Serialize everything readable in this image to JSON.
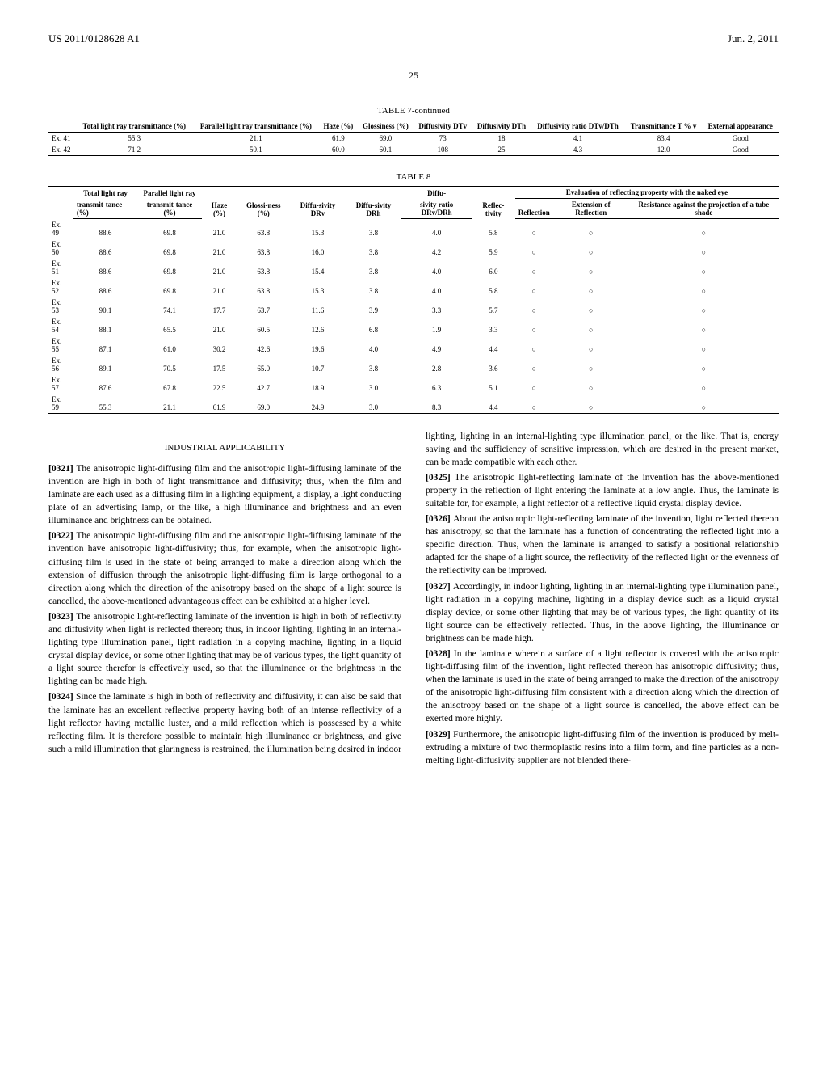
{
  "header": {
    "left": "US 2011/0128628 A1",
    "right": "Jun. 2, 2011"
  },
  "page_num": "25",
  "table7": {
    "title": "TABLE 7-continued",
    "headers": [
      "",
      "Total light ray transmittance (%)",
      "Parallel light ray transmittance (%)",
      "Haze (%)",
      "Glossiness (%)",
      "Diffusivity DTv",
      "Diffusivity DTh",
      "Diffusivity ratio DTv/DTh",
      "Transmittance T % v",
      "External appearance"
    ],
    "rows": [
      [
        "Ex. 41",
        "55.3",
        "21.1",
        "61.9",
        "69.0",
        "73",
        "18",
        "4.1",
        "83.4",
        "Good"
      ],
      [
        "Ex. 42",
        "71.2",
        "50.1",
        "60.0",
        "60.1",
        "108",
        "25",
        "4.3",
        "12.0",
        "Good"
      ]
    ]
  },
  "table8": {
    "title": "TABLE 8",
    "eval_header": "Evaluation of reflecting property with the naked eye",
    "headers1_row1": [
      "",
      "Total light ray",
      "Parallel light ray",
      "",
      "",
      "",
      "",
      "Diffu-",
      "",
      "",
      "",
      ""
    ],
    "headers1_row2": [
      "",
      "transmit-tance (%)",
      "transmit-tance (%)",
      "Haze (%)",
      "Glossi-ness (%)",
      "Diffu-sivity DRv",
      "Diffu-sivity DRh",
      "sivity ratio DRv/DRh",
      "Reflec-tivity",
      "Reflection",
      "Extension of Reflection",
      "Resistance against the projection of a tube shade"
    ],
    "rows": [
      [
        "Ex. 49",
        "88.6",
        "69.8",
        "21.0",
        "63.8",
        "15.3",
        "3.8",
        "4.0",
        "5.8",
        "○",
        "○",
        "○"
      ],
      [
        "Ex. 50",
        "88.6",
        "69.8",
        "21.0",
        "63.8",
        "16.0",
        "3.8",
        "4.2",
        "5.9",
        "○",
        "○",
        "○"
      ],
      [
        "Ex. 51",
        "88.6",
        "69.8",
        "21.0",
        "63.8",
        "15.4",
        "3.8",
        "4.0",
        "6.0",
        "○",
        "○",
        "○"
      ],
      [
        "Ex. 52",
        "88.6",
        "69.8",
        "21.0",
        "63.8",
        "15.3",
        "3.8",
        "4.0",
        "5.8",
        "○",
        "○",
        "○"
      ],
      [
        "Ex. 53",
        "90.1",
        "74.1",
        "17.7",
        "63.7",
        "11.6",
        "3.9",
        "3.3",
        "5.7",
        "○",
        "○",
        "○"
      ],
      [
        "Ex. 54",
        "88.1",
        "65.5",
        "21.0",
        "60.5",
        "12.6",
        "6.8",
        "1.9",
        "3.3",
        "○",
        "○",
        "○"
      ],
      [
        "Ex. 55",
        "87.1",
        "61.0",
        "30.2",
        "42.6",
        "19.6",
        "4.0",
        "4.9",
        "4.4",
        "○",
        "○",
        "○"
      ],
      [
        "Ex. 56",
        "89.1",
        "70.5",
        "17.5",
        "65.0",
        "10.7",
        "3.8",
        "2.8",
        "3.6",
        "○",
        "○",
        "○"
      ],
      [
        "Ex. 57",
        "87.6",
        "67.8",
        "22.5",
        "42.7",
        "18.9",
        "3.0",
        "6.3",
        "5.1",
        "○",
        "○",
        "○"
      ],
      [
        "Ex. 59",
        "55.3",
        "21.1",
        "61.9",
        "69.0",
        "24.9",
        "3.0",
        "8.3",
        "4.4",
        "○",
        "○",
        "○"
      ]
    ]
  },
  "section_title": "INDUSTRIAL APPLICABILITY",
  "paragraphs": [
    {
      "num": "[0321]",
      "text": "The anisotropic light-diffusing film and the anisotropic light-diffusing laminate of the invention are high in both of light transmittance and diffusivity; thus, when the film and laminate are each used as a diffusing film in a lighting equipment, a display, a light conducting plate of an advertising lamp, or the like, a high illuminance and brightness and an even illuminance and brightness can be obtained."
    },
    {
      "num": "[0322]",
      "text": "The anisotropic light-diffusing film and the anisotropic light-diffusing laminate of the invention have anisotropic light-diffusivity; thus, for example, when the anisotropic light-diffusing film is used in the state of being arranged to make a direction along which the extension of diffusion through the anisotropic light-diffusing film is large orthogonal to a direction along which the direction of the anisotropy based on the shape of a light source is cancelled, the above-mentioned advantageous effect can be exhibited at a higher level."
    },
    {
      "num": "[0323]",
      "text": "The anisotropic light-reflecting laminate of the invention is high in both of reflectivity and diffusivity when light is reflected thereon; thus, in indoor lighting, lighting in an internal-lighting type illumination panel, light radiation in a copying machine, lighting in a liquid crystal display device, or some other lighting that may be of various types, the light quantity of a light source therefor is effectively used, so that the illuminance or the brightness in the lighting can be made high."
    },
    {
      "num": "[0324]",
      "text": "Since the laminate is high in both of reflectivity and diffusivity, it can also be said that the laminate has an excellent reflective property having both of an intense reflectivity of a light reflector having metallic luster, and a mild reflection which is possessed by a white reflecting film. It is therefore possible to maintain high illuminance or brightness, and give such a mild illumination that glaringness is restrained, the illumination being desired in indoor lighting, lighting in an internal-lighting type illumination panel, or the like. That is, energy saving and the sufficiency of sensitive impression, which are desired in the present market, can be made compatible with each other."
    },
    {
      "num": "[0325]",
      "text": "The anisotropic light-reflecting laminate of the invention has the above-mentioned property in the reflection of light entering the laminate at a low angle. Thus, the laminate is suitable for, for example, a light reflector of a reflective liquid crystal display device."
    },
    {
      "num": "[0326]",
      "text": "About the anisotropic light-reflecting laminate of the invention, light reflected thereon has anisotropy, so that the laminate has a function of concentrating the reflected light into a specific direction. Thus, when the laminate is arranged to satisfy a positional relationship adapted for the shape of a light source, the reflectivity of the reflected light or the evenness of the reflectivity can be improved."
    },
    {
      "num": "[0327]",
      "text": "Accordingly, in indoor lighting, lighting in an internal-lighting type illumination panel, light radiation in a copying machine, lighting in a display device such as a liquid crystal display device, or some other lighting that may be of various types, the light quantity of its light source can be effectively reflected. Thus, in the above lighting, the illuminance or brightness can be made high."
    },
    {
      "num": "[0328]",
      "text": "In the laminate wherein a surface of a light reflector is covered with the anisotropic light-diffusing film of the invention, light reflected thereon has anisotropic diffusivity; thus, when the laminate is used in the state of being arranged to make the direction of the anisotropy of the anisotropic light-diffusing film consistent with a direction along which the direction of the anisotropy based on the shape of a light source is cancelled, the above effect can be exerted more highly."
    },
    {
      "num": "[0329]",
      "text": "Furthermore, the anisotropic light-diffusing film of the invention is produced by melt-extruding a mixture of two thermoplastic resins into a film form, and fine particles as a non-melting light-diffusivity supplier are not blended there-"
    }
  ]
}
